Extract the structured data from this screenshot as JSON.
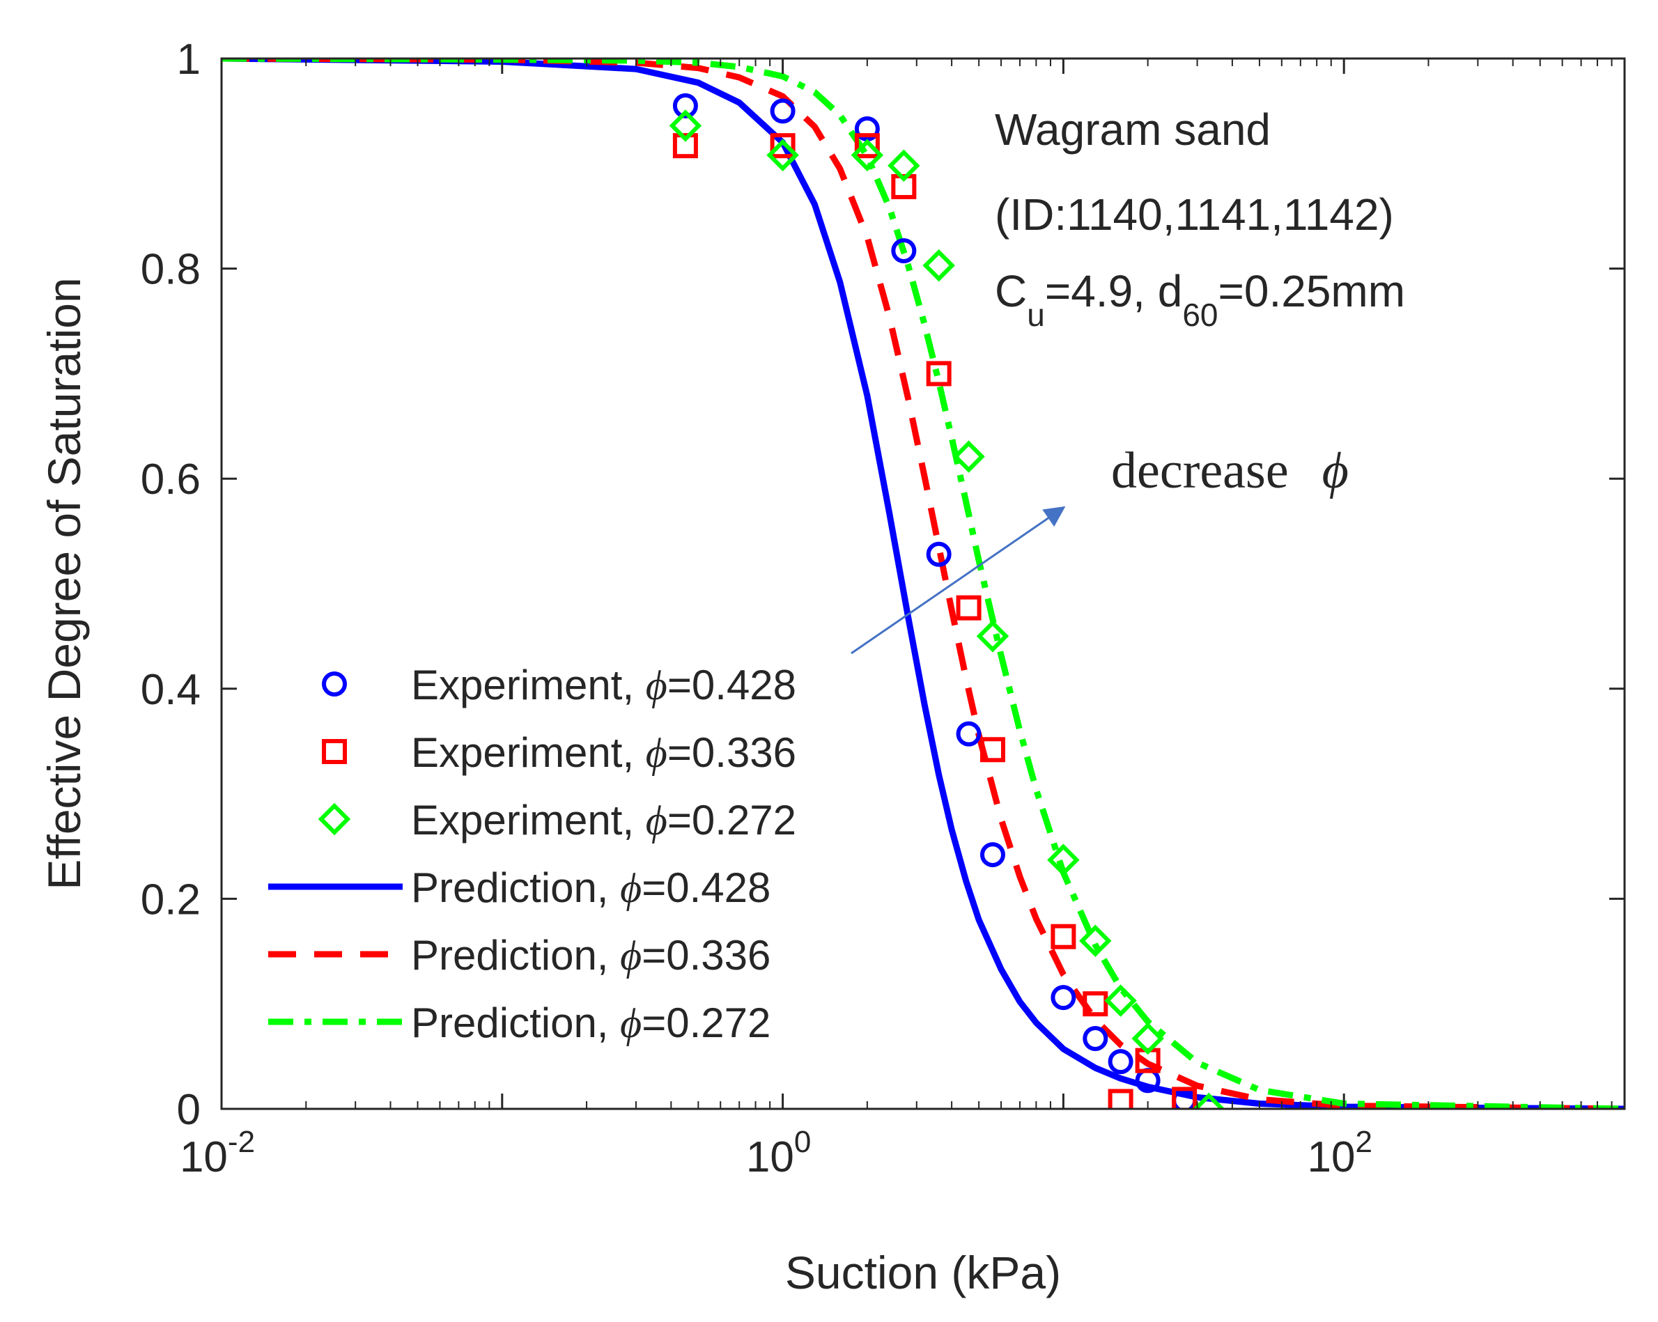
{
  "chart_data": {
    "type": "line",
    "title": "",
    "xlabel": "Suction (kPa)",
    "ylabel": "Effective Degree of Saturation",
    "x_scale": "log",
    "xlim": [
      0.01,
      1000
    ],
    "ylim": [
      0,
      1
    ],
    "x_ticks": [
      {
        "value": 0.01,
        "base": "10",
        "exp": "-2"
      },
      {
        "value": 1,
        "base": "10",
        "exp": "0"
      },
      {
        "value": 100,
        "base": "10",
        "exp": "2"
      }
    ],
    "y_ticks": [
      {
        "value": 0,
        "label": "0"
      },
      {
        "value": 0.2,
        "label": "0.2"
      },
      {
        "value": 0.4,
        "label": "0.4"
      },
      {
        "value": 0.6,
        "label": "0.6"
      },
      {
        "value": 0.8,
        "label": "0.8"
      },
      {
        "value": 1,
        "label": "1"
      }
    ],
    "grid": false,
    "legend_position": "bottom-left",
    "annotations": {
      "soil_name": "Wagram sand",
      "soil_ids": "(ID:1140,1141,1142)",
      "cu_symbol": "C",
      "cu_sub": "u",
      "cu_value": "=4.9, d",
      "d60_sub": "60",
      "d60_value": "=0.25mm",
      "arrow_text": "decrease",
      "arrow_symbol": "ϕ"
    },
    "series": [
      {
        "name": "Experiment, ϕ=0.428",
        "legend_prefix": "Experiment, ",
        "legend_value": "=0.428",
        "kind": "marker",
        "marker": "circle",
        "color": "#0000ff",
        "x": [
          0.45,
          1.0,
          2.0,
          2.7,
          3.6,
          4.6,
          5.6,
          10.0,
          13.0,
          16.0,
          20.0,
          27.0
        ],
        "y": [
          0.955,
          0.95,
          0.933,
          0.817,
          0.528,
          0.357,
          0.242,
          0.106,
          0.067,
          0.045,
          0.027,
          0.008
        ]
      },
      {
        "name": "Experiment, ϕ=0.336",
        "legend_prefix": "Experiment, ",
        "legend_value": "=0.336",
        "kind": "marker",
        "marker": "square",
        "color": "#ff0000",
        "x": [
          0.45,
          1.0,
          2.0,
          2.7,
          3.6,
          4.6,
          5.6,
          10.0,
          13.0,
          16.0,
          20.0,
          27.0
        ],
        "y": [
          0.917,
          0.917,
          0.917,
          0.878,
          0.7,
          0.477,
          0.342,
          0.164,
          0.1,
          0.007,
          0.046,
          0.009
        ]
      },
      {
        "name": "Experiment, ϕ=0.272",
        "legend_prefix": "Experiment, ",
        "legend_value": "=0.272",
        "kind": "marker",
        "marker": "diamond",
        "color": "#00ff00",
        "x": [
          0.45,
          1.0,
          2.0,
          2.7,
          3.6,
          4.6,
          5.6,
          10.0,
          13.0,
          16.0,
          20.0,
          33.0
        ],
        "y": [
          0.936,
          0.908,
          0.908,
          0.898,
          0.803,
          0.621,
          0.45,
          0.237,
          0.16,
          0.103,
          0.067,
          0.0
        ]
      },
      {
        "name": "Prediction, ϕ=0.428",
        "legend_prefix": "Prediction, ",
        "legend_value": "=0.428",
        "kind": "line",
        "dash": "solid",
        "color": "#0000ff",
        "x": [
          0.01,
          0.1,
          0.3,
          0.5,
          0.7,
          1.0,
          1.3,
          1.6,
          2.0,
          2.4,
          2.8,
          3.2,
          3.6,
          4.0,
          4.5,
          5.0,
          6.0,
          7.0,
          8.0,
          10.0,
          13.0,
          16.0,
          20.0,
          30.0,
          50.0,
          100.0,
          1000.0
        ],
        "y": [
          1.0,
          0.997,
          0.99,
          0.977,
          0.958,
          0.92,
          0.861,
          0.787,
          0.679,
          0.567,
          0.468,
          0.385,
          0.318,
          0.266,
          0.217,
          0.18,
          0.133,
          0.102,
          0.082,
          0.057,
          0.039,
          0.029,
          0.021,
          0.011,
          0.005,
          0.002,
          0.0
        ]
      },
      {
        "name": "Prediction, ϕ=0.336",
        "legend_prefix": "Prediction, ",
        "legend_value": "=0.336",
        "kind": "line",
        "dash": "dash",
        "color": "#ff0000",
        "x": [
          0.01,
          0.1,
          0.3,
          0.5,
          0.7,
          1.0,
          1.3,
          1.6,
          2.0,
          2.4,
          2.8,
          3.2,
          3.6,
          4.0,
          4.5,
          5.0,
          6.0,
          7.0,
          8.0,
          10.0,
          13.0,
          16.0,
          20.0,
          30.0,
          50.0,
          100.0,
          1000.0
        ],
        "y": [
          1.0,
          0.999,
          0.996,
          0.991,
          0.982,
          0.964,
          0.935,
          0.895,
          0.83,
          0.754,
          0.676,
          0.602,
          0.535,
          0.475,
          0.41,
          0.356,
          0.276,
          0.221,
          0.181,
          0.128,
          0.085,
          0.061,
          0.043,
          0.022,
          0.009,
          0.003,
          0.0
        ]
      },
      {
        "name": "Prediction, ϕ=0.272",
        "legend_prefix": "Prediction, ",
        "legend_value": "=0.272",
        "kind": "line",
        "dash": "dashdot",
        "color": "#00ff00",
        "x": [
          0.01,
          0.1,
          0.3,
          0.5,
          0.7,
          1.0,
          1.3,
          1.6,
          2.0,
          2.4,
          2.8,
          3.2,
          3.6,
          4.0,
          4.5,
          5.0,
          6.0,
          7.0,
          8.0,
          10.0,
          13.0,
          16.0,
          20.0,
          30.0,
          50.0,
          100.0,
          1000.0
        ],
        "y": [
          1.0,
          0.999,
          0.998,
          0.996,
          0.992,
          0.983,
          0.968,
          0.946,
          0.907,
          0.858,
          0.803,
          0.747,
          0.692,
          0.639,
          0.578,
          0.522,
          0.432,
          0.36,
          0.304,
          0.225,
          0.156,
          0.115,
          0.083,
          0.044,
          0.018,
          0.005,
          0.0
        ]
      }
    ]
  }
}
